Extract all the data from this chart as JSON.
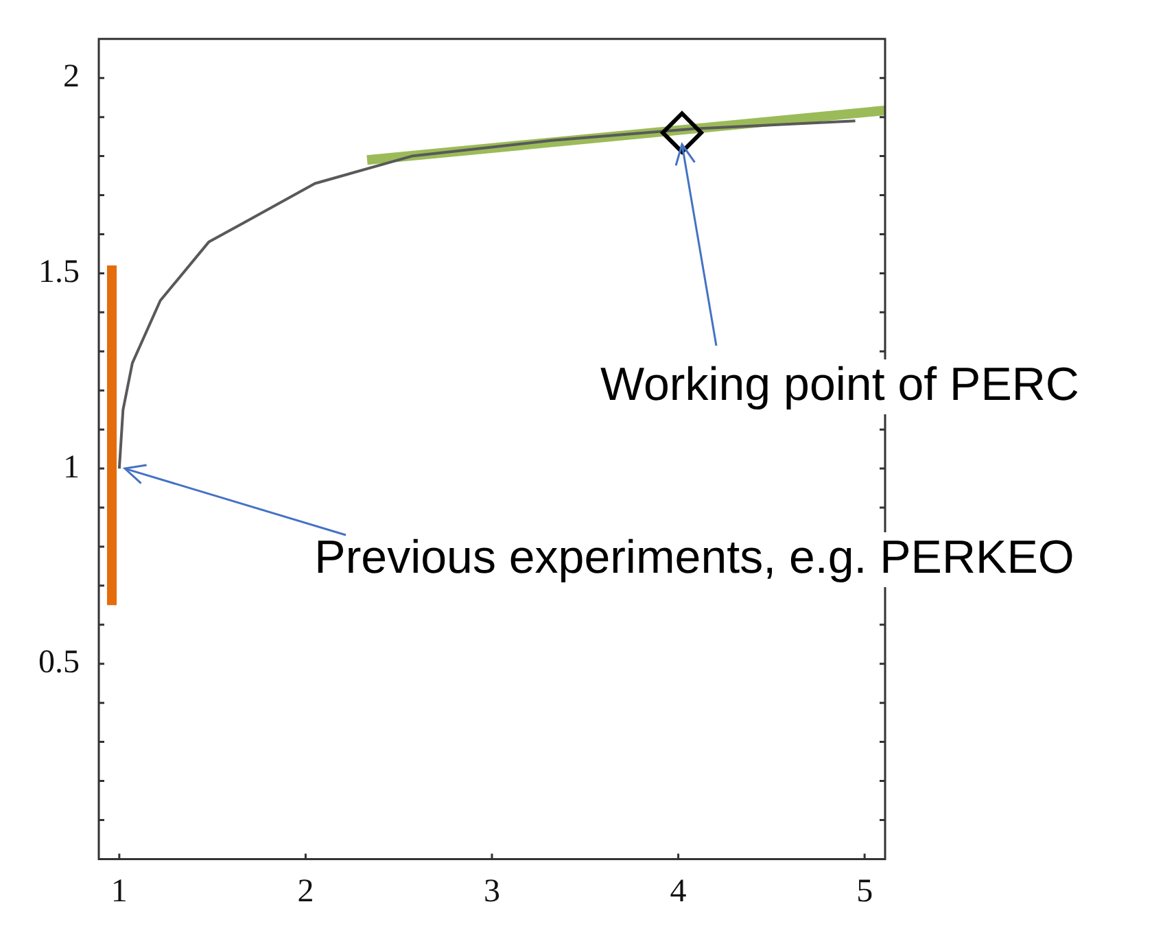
{
  "chart_data": {
    "type": "line",
    "series": [
      {
        "type": "line",
        "color": "#595959",
        "x": [
          1,
          1.02,
          1.07,
          1.22,
          1.48,
          1.67,
          2.05,
          2.57,
          3.32,
          4.08,
          4.95
        ],
        "values": [
          1,
          1.15,
          1.27,
          1.43,
          1.58,
          1.63,
          1.73,
          1.8,
          1.84,
          1.87,
          1.89
        ]
      },
      {
        "type": "line",
        "color": "#e46c0a",
        "x": [
          0.96,
          0.96
        ],
        "values": [
          0.65,
          1.52
        ]
      },
      {
        "type": "line",
        "color": "#9bbb59",
        "x": [
          2.33,
          5.11
        ],
        "values": [
          1.79,
          1.917
        ]
      },
      {
        "type": "scatter",
        "color": "#000000",
        "marker": "diamond",
        "x": [
          4.02
        ],
        "values": [
          1.86
        ]
      }
    ],
    "xlim": [
      0.89,
      5.11
    ],
    "ylim": [
      0,
      2.1
    ],
    "xticks": [
      1,
      2,
      3,
      4,
      5
    ],
    "yticks": [
      {
        "value": 0.1,
        "label": null
      },
      {
        "value": 0.2,
        "label": null
      },
      {
        "value": 0.3,
        "label": null
      },
      {
        "value": 0.4,
        "label": null
      },
      0.5,
      {
        "value": 0.6,
        "label": null
      },
      {
        "value": 0.7,
        "label": null
      },
      {
        "value": 0.8,
        "label": null
      },
      {
        "value": 0.9,
        "label": null
      },
      1,
      {
        "value": 1.1,
        "label": null
      },
      {
        "value": 1.2,
        "label": null
      },
      {
        "value": 1.3,
        "label": null
      },
      {
        "value": 1.4,
        "label": null
      },
      1.5,
      {
        "value": 1.6,
        "label": null
      },
      {
        "value": 1.7,
        "label": null
      },
      {
        "value": 1.8,
        "label": null
      },
      {
        "value": 1.9,
        "label": null
      },
      2
    ],
    "annotations": [
      {
        "text": "Working point of PERC",
        "x": 4.02,
        "y": 1.83
      },
      {
        "text": "Previous experiments, e.g. PERKEO",
        "x": 1.03,
        "y": 1
      }
    ],
    "grid": false,
    "legend": false,
    "marker": "none",
    "line_style": "solid"
  }
}
